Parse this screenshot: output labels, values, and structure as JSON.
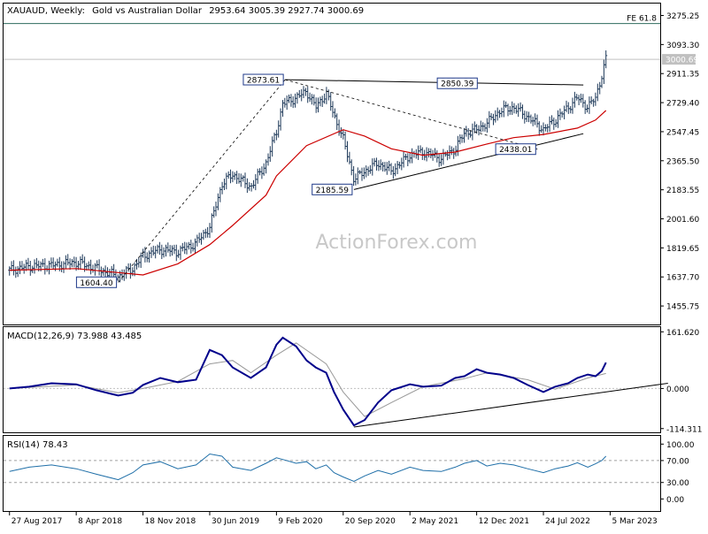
{
  "header": {
    "symbol": "XAUAUD, Weekly:",
    "description": "Gold vs Australian Dollar",
    "ohlc": "2953.64 3005.39 2927.74 3000.69"
  },
  "watermark": "ActionForex.com",
  "colors": {
    "price": "#1f3a5a",
    "ma": "#cc0000",
    "macd": "#00008b",
    "signal": "#999999",
    "rsi": "#1f6fa8",
    "fe_line": "#2e6b5e",
    "trend": "#000000"
  },
  "chart_data": [
    {
      "type": "bar",
      "panel": "price",
      "title": "XAUAUD, Weekly: Gold vs Australian Dollar",
      "y_ticks": [
        "3275.25",
        "3093.30",
        "2911.35",
        "2729.40",
        "2547.45",
        "2365.50",
        "2183.55",
        "2001.60",
        "1819.65",
        "1637.70",
        "1455.75"
      ],
      "ylim": [
        1340,
        3350
      ],
      "last_price": "3000.69",
      "fe_level": {
        "label": "FE 61.8",
        "value": 3225
      },
      "annotations": [
        {
          "label": "2873.61",
          "date": "2020-03-09",
          "value": 2873.61
        },
        {
          "label": "2850.39",
          "date": "2021-12-20",
          "value": 2850.39
        },
        {
          "label": "2438.01",
          "date": "2022-07-04",
          "value": 2438.01
        },
        {
          "label": "2185.59",
          "date": "2020-10-26",
          "value": 2185.59
        },
        {
          "label": "1604.40",
          "date": "2018-08-27",
          "value": 1604.4
        }
      ],
      "trendlines": [
        {
          "from": [
            "2020-03-09",
            2873
          ],
          "to": [
            "2022-12-05",
            2840
          ]
        },
        {
          "from": [
            "2020-10-26",
            2185
          ],
          "to": [
            "2022-12-05",
            2535
          ]
        }
      ],
      "dashed_lines": [
        {
          "from": [
            "2018-08-27",
            1604
          ],
          "to": [
            "2020-03-09",
            2873
          ]
        },
        {
          "from": [
            "2020-03-09",
            2873
          ],
          "to": [
            "2022-07-04",
            2438
          ]
        }
      ],
      "series": [
        {
          "kind": "close",
          "points": [
            [
              "2017-08-27",
              1680
            ],
            [
              "2017-11-01",
              1705
            ],
            [
              "2018-01-15",
              1710
            ],
            [
              "2018-04-08",
              1730
            ],
            [
              "2018-06-15",
              1690
            ],
            [
              "2018-08-27",
              1640
            ],
            [
              "2018-10-15",
              1690
            ],
            [
              "2018-11-18",
              1770
            ],
            [
              "2019-01-15",
              1810
            ],
            [
              "2019-03-15",
              1795
            ],
            [
              "2019-05-15",
              1850
            ],
            [
              "2019-06-30",
              1950
            ],
            [
              "2019-08-10",
              2220
            ],
            [
              "2019-09-15",
              2280
            ],
            [
              "2019-11-15",
              2200
            ],
            [
              "2020-01-05",
              2350
            ],
            [
              "2020-02-09",
              2550
            ],
            [
              "2020-03-01",
              2720
            ],
            [
              "2020-04-15",
              2760
            ],
            [
              "2020-05-20",
              2800
            ],
            [
              "2020-06-20",
              2700
            ],
            [
              "2020-07-25",
              2790
            ],
            [
              "2020-08-20",
              2650
            ],
            [
              "2020-09-20",
              2500
            ],
            [
              "2020-10-26",
              2250
            ],
            [
              "2020-12-01",
              2300
            ],
            [
              "2021-01-15",
              2350
            ],
            [
              "2021-03-01",
              2300
            ],
            [
              "2021-05-02",
              2400
            ],
            [
              "2021-06-15",
              2420
            ],
            [
              "2021-08-15",
              2380
            ],
            [
              "2021-10-01",
              2440
            ],
            [
              "2021-11-01",
              2540
            ],
            [
              "2021-12-12",
              2560
            ],
            [
              "2022-01-15",
              2600
            ],
            [
              "2022-03-01",
              2680
            ],
            [
              "2022-04-15",
              2700
            ],
            [
              "2022-06-01",
              2640
            ],
            [
              "2022-07-24",
              2560
            ],
            [
              "2022-09-01",
              2620
            ],
            [
              "2022-10-15",
              2700
            ],
            [
              "2022-11-15",
              2760
            ],
            [
              "2022-12-20",
              2700
            ],
            [
              "2023-01-15",
              2760
            ],
            [
              "2023-02-05",
              2900
            ],
            [
              "2023-02-19",
              3000
            ]
          ]
        },
        {
          "kind": "moving-average",
          "points": [
            [
              "2017-08-27",
              1680
            ],
            [
              "2018-04-08",
              1690
            ],
            [
              "2018-11-18",
              1650
            ],
            [
              "2019-03-15",
              1720
            ],
            [
              "2019-06-30",
              1840
            ],
            [
              "2019-09-15",
              1960
            ],
            [
              "2020-01-05",
              2150
            ],
            [
              "2020-02-09",
              2270
            ],
            [
              "2020-05-20",
              2460
            ],
            [
              "2020-09-20",
              2560
            ],
            [
              "2020-12-01",
              2520
            ],
            [
              "2021-03-01",
              2440
            ],
            [
              "2021-06-15",
              2400
            ],
            [
              "2021-10-01",
              2420
            ],
            [
              "2022-01-15",
              2470
            ],
            [
              "2022-04-15",
              2510
            ],
            [
              "2022-07-24",
              2530
            ],
            [
              "2022-11-15",
              2570
            ],
            [
              "2023-01-15",
              2620
            ],
            [
              "2023-02-19",
              2680
            ]
          ]
        }
      ]
    },
    {
      "type": "line",
      "panel": "macd",
      "title": "MACD(12,26,9) 73.988 43.485",
      "y_ticks": [
        "161.620",
        "0.000",
        "-114.311"
      ],
      "ylim": [
        -125,
        175
      ],
      "series": [
        {
          "kind": "macd",
          "points": [
            [
              "2017-08-27",
              0
            ],
            [
              "2017-11-01",
              5
            ],
            [
              "2018-01-15",
              15
            ],
            [
              "2018-04-08",
              12
            ],
            [
              "2018-06-15",
              -5
            ],
            [
              "2018-08-27",
              -20
            ],
            [
              "2018-10-15",
              -12
            ],
            [
              "2018-11-18",
              10
            ],
            [
              "2019-01-15",
              30
            ],
            [
              "2019-03-15",
              18
            ],
            [
              "2019-05-15",
              25
            ],
            [
              "2019-06-30",
              110
            ],
            [
              "2019-08-10",
              95
            ],
            [
              "2019-09-15",
              60
            ],
            [
              "2019-11-15",
              30
            ],
            [
              "2020-01-05",
              60
            ],
            [
              "2020-02-09",
              125
            ],
            [
              "2020-03-01",
              145
            ],
            [
              "2020-04-15",
              120
            ],
            [
              "2020-05-20",
              80
            ],
            [
              "2020-06-20",
              60
            ],
            [
              "2020-07-25",
              45
            ],
            [
              "2020-08-20",
              -10
            ],
            [
              "2020-09-20",
              -60
            ],
            [
              "2020-10-26",
              -105
            ],
            [
              "2020-12-01",
              -90
            ],
            [
              "2021-01-15",
              -40
            ],
            [
              "2021-03-01",
              -5
            ],
            [
              "2021-05-02",
              12
            ],
            [
              "2021-06-15",
              5
            ],
            [
              "2021-08-15",
              8
            ],
            [
              "2021-10-01",
              30
            ],
            [
              "2021-11-01",
              35
            ],
            [
              "2021-12-12",
              55
            ],
            [
              "2022-01-15",
              45
            ],
            [
              "2022-03-01",
              40
            ],
            [
              "2022-04-15",
              30
            ],
            [
              "2022-06-01",
              10
            ],
            [
              "2022-07-24",
              -10
            ],
            [
              "2022-09-01",
              5
            ],
            [
              "2022-10-15",
              15
            ],
            [
              "2022-11-15",
              30
            ],
            [
              "2022-12-20",
              40
            ],
            [
              "2023-01-15",
              35
            ],
            [
              "2023-02-05",
              50
            ],
            [
              "2023-02-19",
              74
            ]
          ]
        },
        {
          "kind": "signal",
          "points": [
            [
              "2017-08-27",
              0
            ],
            [
              "2018-04-08",
              10
            ],
            [
              "2018-08-27",
              -12
            ],
            [
              "2018-11-18",
              0
            ],
            [
              "2019-03-15",
              20
            ],
            [
              "2019-06-30",
              70
            ],
            [
              "2019-09-15",
              80
            ],
            [
              "2019-11-15",
              45
            ],
            [
              "2020-02-09",
              95
            ],
            [
              "2020-04-15",
              130
            ],
            [
              "2020-07-25",
              70
            ],
            [
              "2020-09-20",
              -10
            ],
            [
              "2020-12-01",
              -80
            ],
            [
              "2021-03-01",
              -40
            ],
            [
              "2021-06-15",
              5
            ],
            [
              "2021-11-01",
              28
            ],
            [
              "2022-01-15",
              45
            ],
            [
              "2022-06-01",
              25
            ],
            [
              "2022-09-01",
              -2
            ],
            [
              "2022-12-20",
              30
            ],
            [
              "2023-02-19",
              43
            ]
          ]
        }
      ],
      "trendline": {
        "from": [
          "2020-10-26",
          -110
        ],
        "to": [
          "2023-09-15",
          15
        ]
      }
    },
    {
      "type": "line",
      "panel": "rsi",
      "title": "RSI(14) 78.43",
      "y_ticks": [
        "100.00",
        "70.00",
        "30.00",
        "0.00"
      ],
      "ylim": [
        0,
        100
      ],
      "levels": [
        70,
        30
      ],
      "series": [
        {
          "kind": "rsi",
          "points": [
            [
              "2017-08-27",
              50
            ],
            [
              "2017-11-01",
              58
            ],
            [
              "2018-01-15",
              62
            ],
            [
              "2018-04-08",
              55
            ],
            [
              "2018-06-15",
              45
            ],
            [
              "2018-08-27",
              35
            ],
            [
              "2018-10-15",
              48
            ],
            [
              "2018-11-18",
              62
            ],
            [
              "2019-01-15",
              68
            ],
            [
              "2019-03-15",
              55
            ],
            [
              "2019-05-15",
              62
            ],
            [
              "2019-06-30",
              82
            ],
            [
              "2019-08-10",
              78
            ],
            [
              "2019-09-15",
              58
            ],
            [
              "2019-11-15",
              52
            ],
            [
              "2020-01-05",
              65
            ],
            [
              "2020-02-09",
              75
            ],
            [
              "2020-03-01",
              72
            ],
            [
              "2020-04-15",
              65
            ],
            [
              "2020-05-20",
              68
            ],
            [
              "2020-06-20",
              55
            ],
            [
              "2020-07-25",
              62
            ],
            [
              "2020-08-20",
              48
            ],
            [
              "2020-09-20",
              40
            ],
            [
              "2020-10-26",
              32
            ],
            [
              "2020-12-01",
              42
            ],
            [
              "2021-01-15",
              52
            ],
            [
              "2021-03-01",
              45
            ],
            [
              "2021-05-02",
              58
            ],
            [
              "2021-06-15",
              52
            ],
            [
              "2021-08-15",
              50
            ],
            [
              "2021-10-01",
              58
            ],
            [
              "2021-11-01",
              65
            ],
            [
              "2021-12-12",
              70
            ],
            [
              "2022-01-15",
              60
            ],
            [
              "2022-03-01",
              65
            ],
            [
              "2022-04-15",
              62
            ],
            [
              "2022-06-01",
              55
            ],
            [
              "2022-07-24",
              48
            ],
            [
              "2022-09-01",
              55
            ],
            [
              "2022-10-15",
              60
            ],
            [
              "2022-11-15",
              66
            ],
            [
              "2022-12-20",
              58
            ],
            [
              "2023-01-15",
              64
            ],
            [
              "2023-02-05",
              70
            ],
            [
              "2023-02-19",
              78
            ]
          ]
        }
      ]
    }
  ],
  "x_axis": {
    "ticks": [
      {
        "label": "27 Aug 2017",
        "date": "2017-08-27"
      },
      {
        "label": "8 Apr 2018",
        "date": "2018-04-08"
      },
      {
        "label": "18 Nov 2018",
        "date": "2018-11-18"
      },
      {
        "label": "30 Jun 2019",
        "date": "2019-06-30"
      },
      {
        "label": "9 Feb 2020",
        "date": "2020-02-09"
      },
      {
        "label": "20 Sep 2020",
        "date": "2020-09-20"
      },
      {
        "label": "2 May 2021",
        "date": "2021-05-02"
      },
      {
        "label": "12 Dec 2021",
        "date": "2021-12-12"
      },
      {
        "label": "24 Jul 2022",
        "date": "2022-07-24"
      },
      {
        "label": "5 Mar 2023",
        "date": "2023-03-05"
      }
    ]
  }
}
